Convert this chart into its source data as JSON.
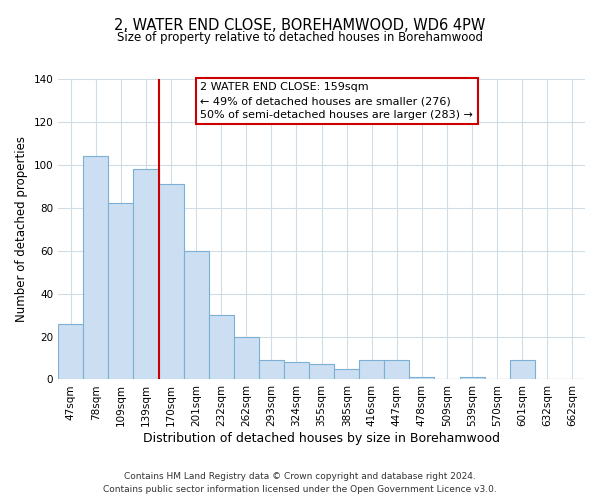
{
  "title": "2, WATER END CLOSE, BOREHAMWOOD, WD6 4PW",
  "subtitle": "Size of property relative to detached houses in Borehamwood",
  "xlabel": "Distribution of detached houses by size in Borehamwood",
  "ylabel": "Number of detached properties",
  "categories": [
    "47sqm",
    "78sqm",
    "109sqm",
    "139sqm",
    "170sqm",
    "201sqm",
    "232sqm",
    "262sqm",
    "293sqm",
    "324sqm",
    "355sqm",
    "385sqm",
    "416sqm",
    "447sqm",
    "478sqm",
    "509sqm",
    "539sqm",
    "570sqm",
    "601sqm",
    "632sqm",
    "662sqm"
  ],
  "values": [
    26,
    104,
    82,
    98,
    91,
    60,
    30,
    20,
    9,
    8,
    7,
    5,
    9,
    9,
    1,
    0,
    1,
    0,
    9,
    0,
    0
  ],
  "bar_color": "#ccdff2",
  "bar_edge_color": "#7bafd4",
  "vline_x": 3.5,
  "vline_color": "#cc0000",
  "ylim": [
    0,
    140
  ],
  "yticks": [
    0,
    20,
    40,
    60,
    80,
    100,
    120,
    140
  ],
  "annotation_text_line1": "2 WATER END CLOSE: 159sqm",
  "annotation_text_line2": "← 49% of detached houses are smaller (276)",
  "annotation_text_line3": "50% of semi-detached houses are larger (283) →",
  "annotation_box_color": "#cc0000",
  "annotation_box_fill": "#ffffff",
  "footer_line1": "Contains HM Land Registry data © Crown copyright and database right 2024.",
  "footer_line2": "Contains public sector information licensed under the Open Government Licence v3.0.",
  "background_color": "#ffffff",
  "grid_color": "#d0dce8",
  "title_fontsize": 10.5,
  "subtitle_fontsize": 8.5,
  "ylabel_fontsize": 8.5,
  "xlabel_fontsize": 9,
  "tick_fontsize": 7.5,
  "annotation_fontsize": 8,
  "footer_fontsize": 6.5
}
